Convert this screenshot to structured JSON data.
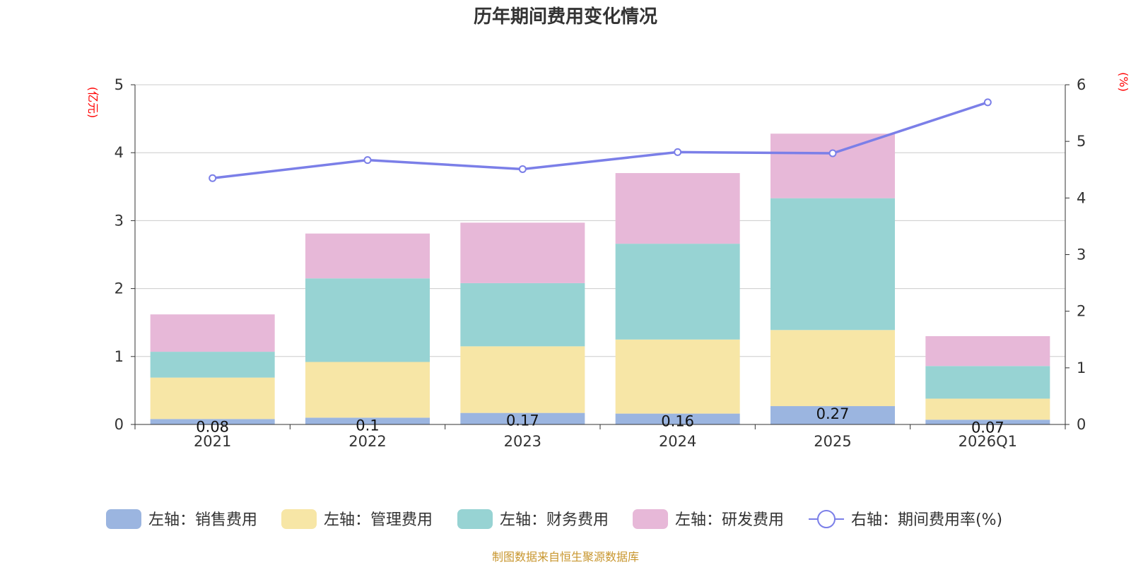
{
  "chart_data": {
    "type": "bar",
    "stacked": true,
    "title": "历年期间费用变化情况",
    "categories": [
      "2021",
      "2022",
      "2023",
      "2024",
      "2025",
      "2026Q1"
    ],
    "left_axis": {
      "unit": "(亿元)",
      "range": [
        0,
        5
      ],
      "ticks": [
        "0",
        "1",
        "2",
        "3",
        "4",
        "5"
      ]
    },
    "right_axis": {
      "unit": "(%)",
      "range": [
        0,
        6
      ],
      "ticks": [
        "0",
        "1",
        "2",
        "3",
        "4",
        "5",
        "6"
      ]
    },
    "series": [
      {
        "name": "左轴：销售费用",
        "axis": "left",
        "color": "#9bb5e0",
        "values": [
          0.08,
          0.1,
          0.17,
          0.16,
          0.27,
          0.07
        ],
        "labels": [
          "0.08",
          "0.1",
          "0.17",
          "0.16",
          "0.27",
          "0.07"
        ]
      },
      {
        "name": "左轴：管理费用",
        "axis": "left",
        "color": "#f7e6a6",
        "values": [
          0.61,
          0.82,
          0.98,
          1.09,
          1.12,
          0.31
        ]
      },
      {
        "name": "左轴：财务费用",
        "axis": "left",
        "color": "#97d3d3",
        "values": [
          0.38,
          1.23,
          0.93,
          1.41,
          1.94,
          0.48
        ]
      },
      {
        "name": "左轴：研发费用",
        "axis": "left",
        "color": "#e7b8d8",
        "values": [
          0.55,
          0.66,
          0.89,
          1.04,
          0.95,
          0.44
        ]
      },
      {
        "name": "右轴：期间费用率(%)",
        "axis": "right",
        "type": "line",
        "color": "#7b7fe8",
        "values": [
          4.35,
          4.67,
          4.51,
          4.81,
          4.79,
          5.69
        ]
      }
    ],
    "legend_position": "bottom",
    "grid": true
  },
  "footer": {
    "source": "制图数据来自恒生聚源数据库"
  }
}
